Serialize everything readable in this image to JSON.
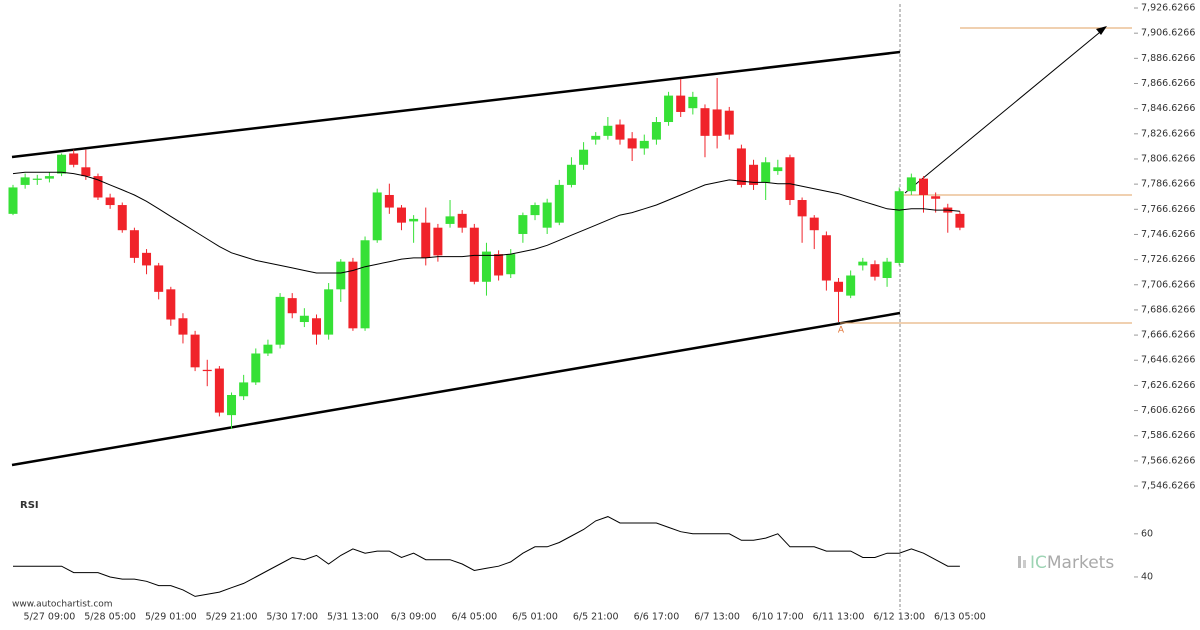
{
  "chart_data": [
    {
      "type": "candlestick",
      "categories": [
        null,
        null,
        null,
        "5/27 09:00",
        null,
        null,
        null,
        null,
        "5/28 05:00",
        null,
        null,
        null,
        null,
        "5/29 01:00",
        null,
        null,
        null,
        null,
        "5/29 21:00",
        null,
        null,
        null,
        null,
        "5/30 17:00",
        null,
        null,
        null,
        null,
        "5/31 13:00",
        null,
        null,
        null,
        null,
        "6/3 09:00",
        null,
        null,
        null,
        null,
        "6/4 05:00",
        null,
        null,
        null,
        null,
        "6/5 01:00",
        null,
        null,
        null,
        null,
        "6/5 21:00",
        null,
        null,
        null,
        null,
        "6/6 17:00",
        null,
        null,
        null,
        null,
        "6/7 13:00",
        null,
        null,
        null,
        null,
        "6/10 17:00",
        null,
        null,
        null,
        null,
        "6/11 13:00",
        null,
        null,
        null,
        null,
        "6/12 13:00",
        null,
        null,
        null,
        null,
        "6/13 05:00"
      ],
      "open": [
        7763,
        7786,
        7790,
        7791,
        7795,
        7811,
        7800,
        7793,
        7776,
        7770,
        7750,
        7732,
        7722,
        7703,
        7680,
        7667,
        7639,
        7640,
        7603,
        7618,
        7629,
        7652,
        7659,
        7696,
        7677,
        7680,
        7667,
        7703,
        7725,
        7672,
        7742,
        7778,
        7768,
        7757,
        7756,
        7752,
        7755,
        7763,
        7752,
        7709,
        7731,
        7715,
        7747,
        7762,
        7752,
        7756,
        7786,
        7802,
        7822,
        7825,
        7834,
        7823,
        7815,
        7822,
        7836,
        7857,
        7847,
        7847,
        7846,
        7845,
        7815,
        7802,
        7788,
        7797,
        7808,
        7774,
        7760,
        7746,
        7709,
        7698,
        7722,
        7723,
        7712,
        7724,
        7781,
        7791,
        7777,
        7768,
        7763
      ],
      "high": [
        7786,
        7795,
        7794,
        7796,
        7811,
        7814,
        7814,
        7795,
        7779,
        7772,
        7752,
        7735,
        7724,
        7705,
        7684,
        7670,
        7647,
        7642,
        7621,
        7635,
        7656,
        7663,
        7700,
        7700,
        7688,
        7683,
        7708,
        7727,
        7728,
        7745,
        7783,
        7787,
        7770,
        7762,
        7768,
        7755,
        7774,
        7766,
        7755,
        7740,
        7734,
        7735,
        7764,
        7772,
        7775,
        7790,
        7808,
        7820,
        7828,
        7840,
        7838,
        7828,
        7826,
        7840,
        7860,
        7870,
        7860,
        7850,
        7871,
        7848,
        7818,
        7806,
        7808,
        7806,
        7810,
        7776,
        7762,
        7749,
        7712,
        7718,
        7728,
        7726,
        7728,
        7784,
        7795,
        7793,
        7780,
        7771,
        7765
      ],
      "low": [
        7762,
        7783,
        7786,
        7788,
        7793,
        7800,
        7790,
        7774,
        7767,
        7748,
        7724,
        7715,
        7695,
        7674,
        7660,
        7638,
        7626,
        7602,
        7592,
        7615,
        7627,
        7650,
        7656,
        7680,
        7673,
        7659,
        7663,
        7693,
        7670,
        7670,
        7740,
        7763,
        7750,
        7740,
        7722,
        7725,
        7752,
        7748,
        7707,
        7698,
        7710,
        7712,
        7740,
        7758,
        7747,
        7754,
        7784,
        7798,
        7818,
        7822,
        7818,
        7805,
        7810,
        7818,
        7833,
        7840,
        7842,
        7808,
        7815,
        7822,
        7784,
        7782,
        7774,
        7794,
        7770,
        7740,
        7735,
        7702,
        7677,
        7696,
        7718,
        7710,
        7705,
        7722,
        7778,
        7764,
        7764,
        7748,
        7750
      ],
      "close": [
        7784,
        7792,
        7791,
        7793,
        7810,
        7802,
        7793,
        7776,
        7770,
        7750,
        7728,
        7722,
        7701,
        7679,
        7667,
        7641,
        7638,
        7605,
        7619,
        7629,
        7652,
        7659,
        7697,
        7684,
        7682,
        7667,
        7703,
        7725,
        7672,
        7742,
        7780,
        7768,
        7756,
        7759,
        7728,
        7730,
        7761,
        7752,
        7709,
        7733,
        7714,
        7731,
        7762,
        7770,
        7772,
        7786,
        7802,
        7814,
        7825,
        7833,
        7822,
        7815,
        7821,
        7836,
        7857,
        7844,
        7856,
        7825,
        7825,
        7826,
        7786,
        7786,
        7804,
        7800,
        7774,
        7761,
        7750,
        7710,
        7701,
        7714,
        7725,
        7713,
        7725,
        7781,
        7792,
        7778,
        7775,
        7764,
        7752
      ],
      "up_color": "#36e036",
      "down_color": "#f0232a",
      "overlay": {
        "type": "line",
        "color": "#000000",
        "values": [
          7795,
          7796,
          7796,
          7796,
          7796,
          7795,
          7793,
          7790,
          7786,
          7782,
          7778,
          7773,
          7767,
          7761,
          7755,
          7749,
          7743,
          7737,
          7732,
          7729,
          7726,
          7724,
          7722,
          7720,
          7718,
          7716,
          7716,
          7716,
          7718,
          7721,
          7723,
          7725,
          7727,
          7728,
          7728,
          7729,
          7729,
          7729,
          7730,
          7730,
          7730,
          7731,
          7733,
          7735,
          7738,
          7742,
          7746,
          7750,
          7754,
          7758,
          7762,
          7764,
          7767,
          7770,
          7774,
          7778,
          7782,
          7786,
          7788,
          7790,
          7789,
          7788,
          7788,
          7787,
          7787,
          7785,
          7783,
          7781,
          7779,
          7776,
          7773,
          7770,
          7767,
          7766,
          7767,
          7767,
          7766,
          7766,
          7765
        ]
      },
      "annotation": "A",
      "ylim": [
        7539.5,
        7933
      ],
      "yticks": [
        {
          "value": 7546.6266,
          "label": "7,546.6266"
        },
        {
          "value": 7566.6266,
          "label": "7,566.6266"
        },
        {
          "value": 7586.6266,
          "label": "7,586.6266"
        },
        {
          "value": 7606.6266,
          "label": "7,606.6266"
        },
        {
          "value": 7626.6266,
          "label": "7,626.6266"
        },
        {
          "value": 7646.6266,
          "label": "7,646.6266"
        },
        {
          "value": 7666.6266,
          "label": "7,666.6266"
        },
        {
          "value": 7686.6266,
          "label": "7,686.6266"
        },
        {
          "value": 7706.6266,
          "label": "7,706.6266"
        },
        {
          "value": 7726.6266,
          "label": "7,726.6266"
        },
        {
          "value": 7746.6266,
          "label": "7,746.6266"
        },
        {
          "value": 7766.6266,
          "label": "7,766.6266"
        },
        {
          "value": 7786.6266,
          "label": "7,786.6266"
        },
        {
          "value": 7806.6266,
          "label": "7,806.6266"
        },
        {
          "value": 7826.6266,
          "label": "7,826.6266"
        },
        {
          "value": 7846.6266,
          "label": "7,846.6266"
        },
        {
          "value": 7866.6266,
          "label": "7,866.6266"
        },
        {
          "value": 7886.6266,
          "label": "7,886.6266"
        },
        {
          "value": 7906.6266,
          "label": "7,906.6266"
        },
        {
          "value": 7926.6266,
          "label": "7,926.6266"
        }
      ]
    },
    {
      "type": "line",
      "title": "RSI",
      "color": "#000000",
      "values": [
        45,
        45,
        45,
        45,
        45,
        42,
        42,
        42,
        40,
        39,
        39,
        38,
        36,
        36,
        34,
        31,
        32,
        33,
        35,
        37,
        40,
        43,
        46,
        49,
        48,
        50,
        46,
        50,
        53,
        51,
        52,
        52,
        49,
        51,
        48,
        48,
        48,
        46,
        43,
        44,
        45,
        47,
        51,
        54,
        54,
        56,
        59,
        62,
        66,
        68,
        65,
        65,
        65,
        65,
        63,
        61,
        60,
        60,
        60,
        60,
        57,
        57,
        58,
        60,
        54,
        54,
        54,
        52,
        52,
        52,
        49,
        49,
        51,
        51,
        53,
        51,
        48,
        45,
        45
      ],
      "ylim": [
        27,
        78
      ],
      "yticks": [
        60,
        40
      ]
    }
  ],
  "source": "www.autochartist.com",
  "logo": {
    "prefix": "IC",
    "text": "Markets"
  }
}
